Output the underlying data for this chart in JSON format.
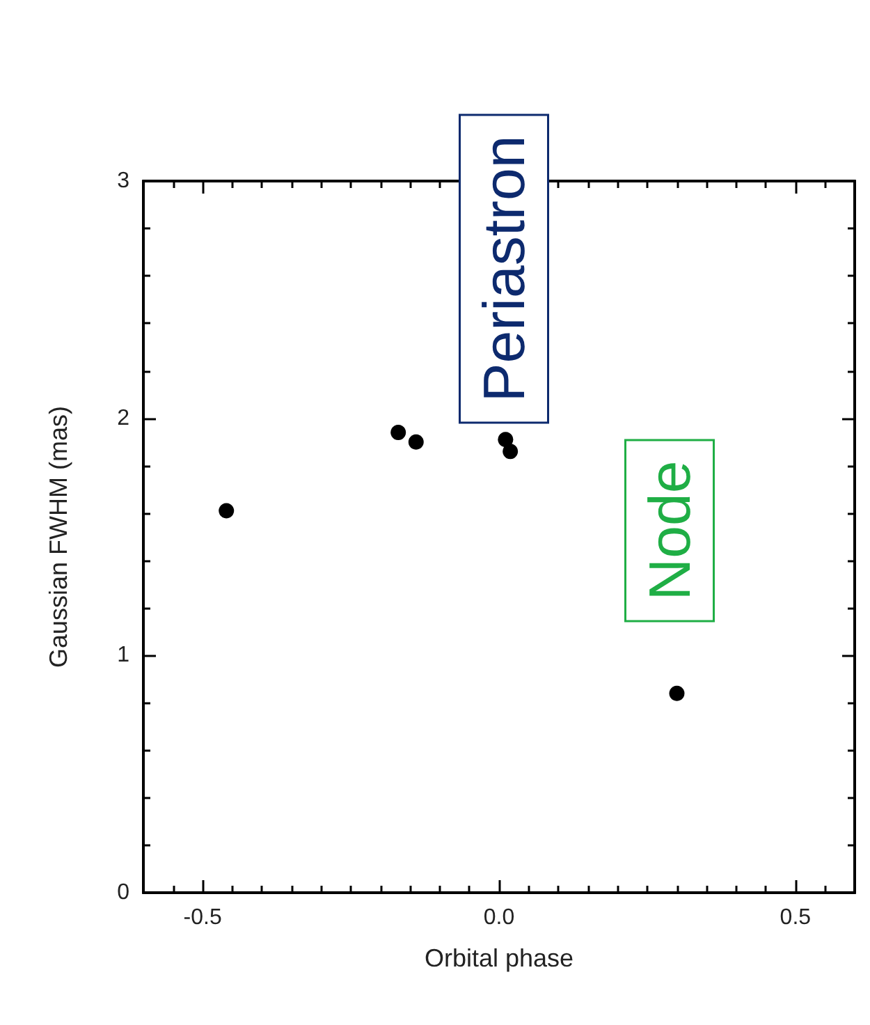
{
  "chart_data": {
    "type": "scatter",
    "xlabel": "Orbital phase",
    "ylabel": "Gaussian FWHM (mas)",
    "x": [
      -0.46,
      -0.17,
      -0.14,
      0.011,
      0.019,
      0.3
    ],
    "values": [
      1.61,
      1.94,
      1.9,
      1.91,
      1.86,
      0.84
    ],
    "color": "#000000",
    "marker": "circle",
    "grid": false,
    "xlim": [
      -0.6,
      0.6
    ],
    "ylim": [
      0,
      3
    ],
    "xticks": [
      {
        "value": -0.55,
        "label": null
      },
      {
        "value": -0.5,
        "label": "-0.5"
      },
      {
        "value": -0.45,
        "label": null
      },
      {
        "value": -0.4,
        "label": null
      },
      {
        "value": -0.35,
        "label": null
      },
      {
        "value": -0.3,
        "label": null
      },
      {
        "value": -0.25,
        "label": null
      },
      {
        "value": -0.2,
        "label": null
      },
      {
        "value": -0.15,
        "label": null
      },
      {
        "value": -0.1,
        "label": null
      },
      {
        "value": -0.05,
        "label": null
      },
      {
        "value": 0,
        "label": "0.0"
      },
      {
        "value": 0.05,
        "label": null
      },
      {
        "value": 0.1,
        "label": null
      },
      {
        "value": 0.15,
        "label": null
      },
      {
        "value": 0.2,
        "label": null
      },
      {
        "value": 0.25,
        "label": null
      },
      {
        "value": 0.3,
        "label": null
      },
      {
        "value": 0.35,
        "label": null
      },
      {
        "value": 0.4,
        "label": null
      },
      {
        "value": 0.45,
        "label": null
      },
      {
        "value": 0.5,
        "label": "0.5"
      },
      {
        "value": 0.55,
        "label": null
      }
    ],
    "yticks": [
      0,
      {
        "value": 0.2,
        "label": null
      },
      {
        "value": 0.4,
        "label": null
      },
      {
        "value": 0.6,
        "label": null
      },
      {
        "value": 0.8,
        "label": null
      },
      1,
      {
        "value": 1.2,
        "label": null
      },
      {
        "value": 1.4,
        "label": null
      },
      {
        "value": 1.6,
        "label": null
      },
      {
        "value": 1.8,
        "label": null
      },
      2,
      {
        "value": 2.2,
        "label": null
      },
      {
        "value": 2.4,
        "label": null
      },
      {
        "value": 2.6,
        "label": null
      },
      {
        "value": 2.8,
        "label": null
      },
      3
    ],
    "annotations": [
      "Periastron",
      "Node"
    ]
  }
}
